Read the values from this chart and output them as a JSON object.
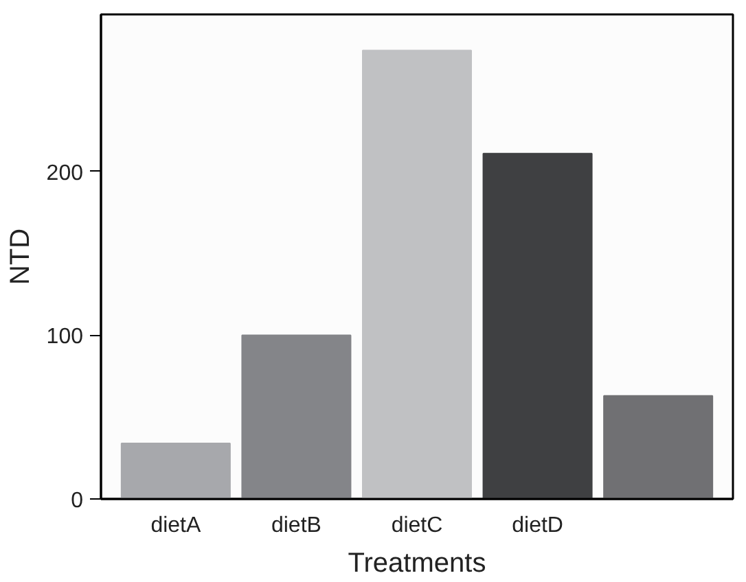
{
  "chart_data": {
    "type": "bar",
    "xlabel": "Treatments",
    "ylabel": "NTD",
    "categories": [
      "dietA",
      "dietB",
      "dietC",
      "dietD",
      null
    ],
    "values": [
      34,
      100,
      274,
      211,
      63
    ],
    "colors": [
      "#a7a8ac",
      "#848589",
      "#c0c1c3",
      "#3f4042",
      "#707073"
    ],
    "ylim": [
      0,
      296
    ],
    "yticks": [
      0,
      100,
      200
    ],
    "grid": false
  }
}
